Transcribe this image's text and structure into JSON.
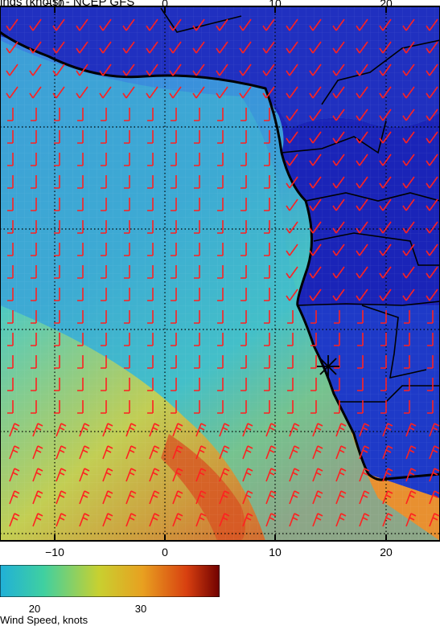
{
  "title": "inds (knots) - NCEP GFS",
  "x_axis": {
    "ticks": [
      {
        "value": -10,
        "label": "−10"
      },
      {
        "value": 0,
        "label": "0"
      },
      {
        "value": 10,
        "label": "10"
      },
      {
        "value": 20,
        "label": "20"
      }
    ]
  },
  "colorbar": {
    "title": "Wind Speed, knots",
    "labels": [
      "20",
      "30"
    ],
    "colors": [
      "#20b0d8",
      "#40d0a0",
      "#c8d030",
      "#e8a020",
      "#d84010",
      "#700000"
    ]
  },
  "colors": {
    "land": "#1a2bc8",
    "ocean_low": "#3a78e0",
    "ocean_mid": "#3ec0d8",
    "ocean_high": "#e0c040",
    "barb": "#ff2020",
    "coast": "#000000"
  },
  "marker": {
    "label": "✳",
    "name": "station-marker"
  }
}
